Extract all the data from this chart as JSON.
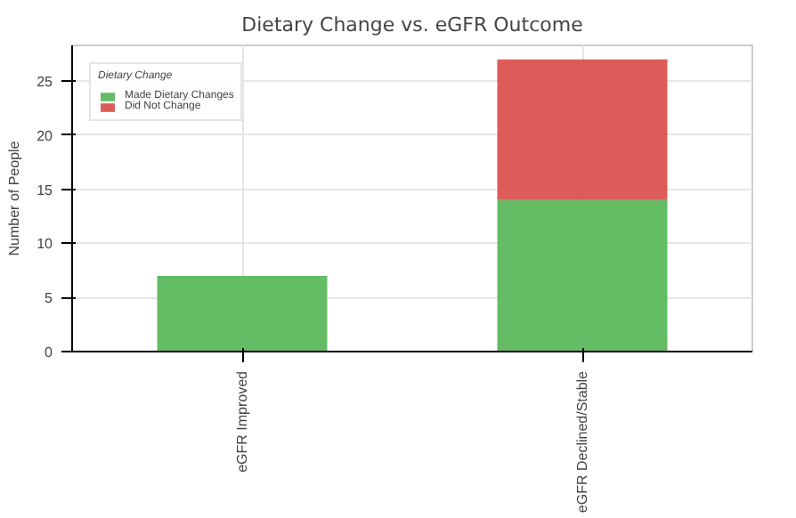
{
  "chart_data": {
    "type": "bar",
    "title": "Dietary Change vs. eGFR Outcome",
    "ylabel": "Number of People",
    "legend_title": "Dietary Change",
    "categories": [
      "eGFR Improved",
      "eGFR Declined/Stable"
    ],
    "stacked": true,
    "series": [
      {
        "name": "Made Dietary Changes",
        "color": "#5cb85c",
        "values": [
          7,
          14
        ]
      },
      {
        "name": "Did Not Change",
        "color": "#d9534f",
        "values": [
          0,
          13
        ]
      }
    ],
    "ylim": [
      0,
      28.3
    ],
    "yticks": [
      0,
      5,
      10,
      15,
      20,
      25
    ],
    "grid": true,
    "legend": "top left"
  }
}
